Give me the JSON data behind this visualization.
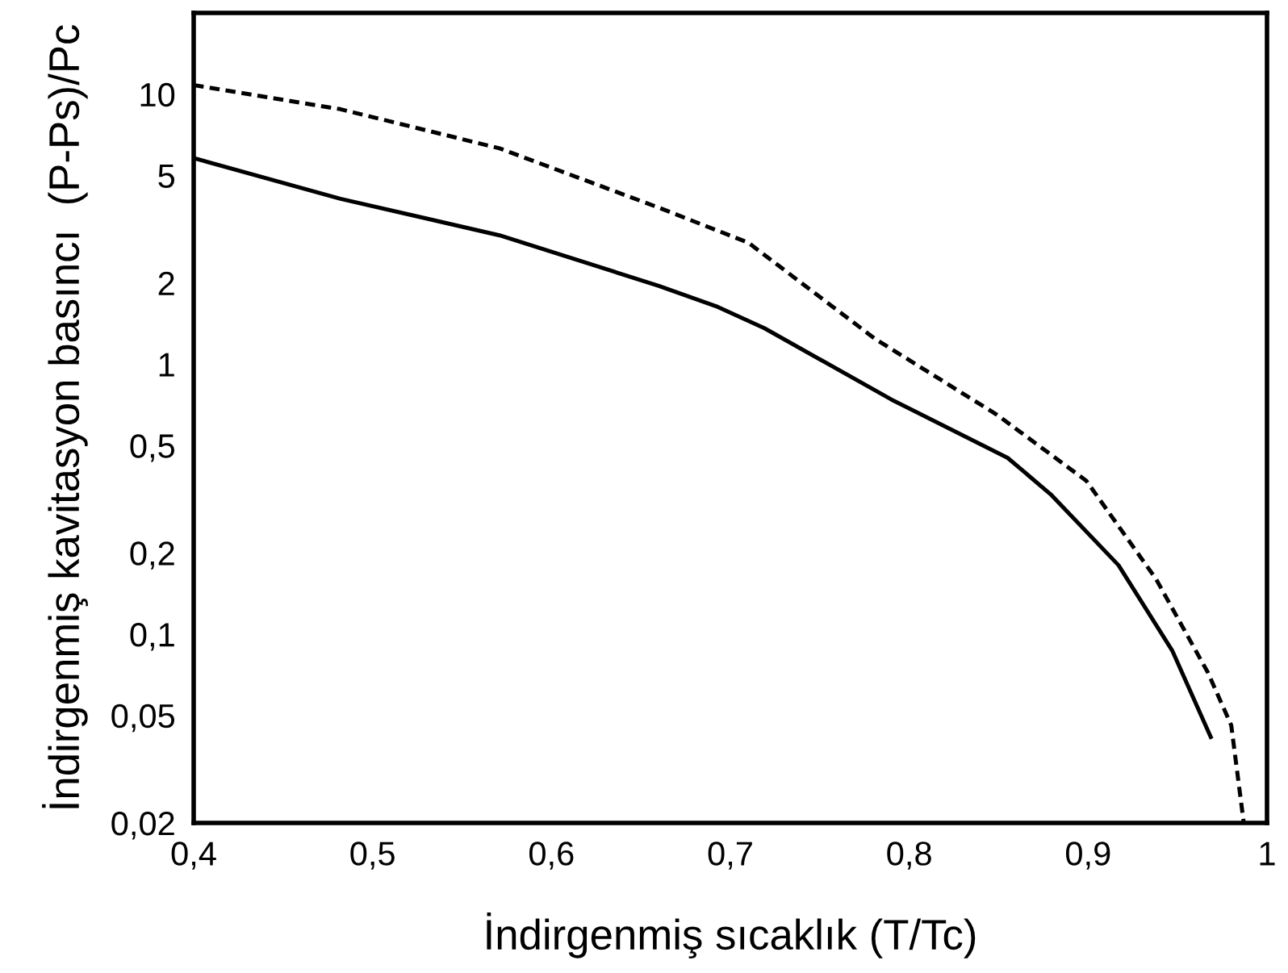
{
  "chart_data": {
    "type": "line",
    "xlabel": "İndirgenmiş sıcaklık (T/Tc)",
    "ylabel": "İndirgenmiş kavitasyon basıncı  (P-Ps)/Pc",
    "log": "y",
    "xlim": [
      0.4,
      1.0
    ],
    "ylim": [
      0.02,
      20
    ],
    "xticks": [
      {
        "value": 0.4,
        "label": "0,4"
      },
      {
        "value": 0.5,
        "label": "0,5"
      },
      {
        "value": 0.6,
        "label": "0,6"
      },
      {
        "value": 0.7,
        "label": "0,7"
      },
      {
        "value": 0.8,
        "label": "0,8"
      },
      {
        "value": 0.9,
        "label": "0,9"
      },
      {
        "value": 1.0,
        "label": "1"
      }
    ],
    "yticks": [
      {
        "value": 0.02,
        "label": "0,02"
      },
      {
        "value": 0.05,
        "label": "0,05"
      },
      {
        "value": 0.1,
        "label": "0,1"
      },
      {
        "value": 0.2,
        "label": "0,2"
      },
      {
        "value": 0.5,
        "label": "0,5"
      },
      1,
      2,
      5,
      10
    ],
    "grid": false,
    "legend": false,
    "marker": "none",
    "series": [
      {
        "color": "#000000",
        "line_style": "solid",
        "x": [
          0.4,
          0.482,
          0.571,
          0.66,
          0.693,
          0.719,
          0.79,
          0.855,
          0.879,
          0.917,
          0.947,
          0.969
        ],
        "values": [
          5.8,
          4.1,
          3.0,
          1.95,
          1.63,
          1.36,
          0.74,
          0.45,
          0.33,
          0.18,
          0.087,
          0.041
        ]
      },
      {
        "color": "#000000",
        "line_style": "dashed",
        "x": [
          0.4,
          0.482,
          0.571,
          0.66,
          0.71,
          0.781,
          0.849,
          0.899,
          0.938,
          0.967,
          0.98,
          0.987
        ],
        "values": [
          10.8,
          8.8,
          6.3,
          3.8,
          2.82,
          1.24,
          0.65,
          0.37,
          0.16,
          0.072,
          0.046,
          0.02
        ]
      }
    ]
  }
}
